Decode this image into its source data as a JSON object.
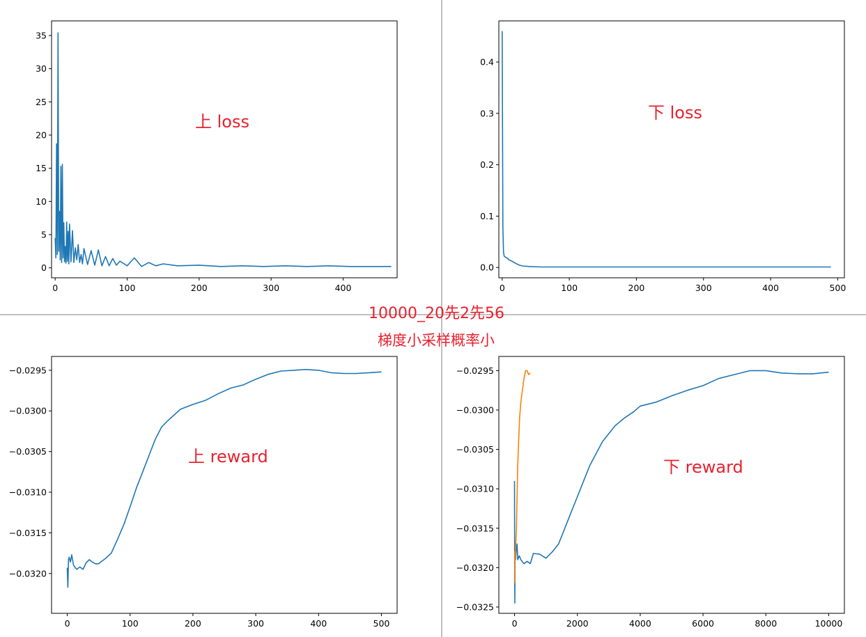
{
  "captions": {
    "line1": "10000_20先2先56",
    "line2": "梯度小采样概率小"
  },
  "colors": {
    "series_blue": "#1f77b4",
    "series_orange": "#ff7f0e",
    "annotation_red": "#e8212d",
    "divider_gray": "#c0c0c0"
  },
  "chart_data": [
    {
      "type": "line",
      "annotation": "上 loss",
      "xlim": [
        -5,
        475
      ],
      "ylim": [
        -1.5,
        37.2
      ],
      "xticks": [
        0,
        100,
        200,
        300,
        400
      ],
      "yticks": [
        0,
        5,
        10,
        15,
        20,
        25,
        30,
        35
      ],
      "xticklabels": [
        "0",
        "100",
        "200",
        "300",
        "400"
      ],
      "yticklabels": [
        "0",
        "5",
        "10",
        "15",
        "20",
        "25",
        "30",
        "35"
      ],
      "series": [
        {
          "color": "#1f77b4",
          "x": [
            0,
            1,
            2,
            3,
            4,
            5,
            6,
            7,
            8,
            9,
            10,
            11,
            12,
            13,
            14,
            15,
            16,
            17,
            18,
            19,
            20,
            22,
            24,
            26,
            28,
            30,
            32,
            34,
            36,
            38,
            40,
            45,
            50,
            55,
            60,
            65,
            70,
            75,
            80,
            85,
            90,
            100,
            110,
            120,
            130,
            140,
            150,
            170,
            200,
            230,
            260,
            290,
            320,
            350,
            380,
            410,
            440,
            467
          ],
          "y": [
            4.5,
            1.5,
            18.7,
            2.0,
            35.4,
            2.5,
            8.5,
            1.2,
            15.3,
            0.8,
            15.6,
            1.5,
            6.8,
            0.9,
            3.2,
            0.7,
            6.9,
            1.0,
            5.5,
            0.6,
            6.6,
            0.9,
            5.6,
            0.8,
            3.0,
            1.2,
            3.5,
            0.8,
            2.0,
            0.6,
            2.9,
            0.5,
            2.6,
            0.4,
            2.7,
            0.3,
            1.7,
            0.3,
            1.4,
            0.4,
            1.0,
            0.3,
            1.5,
            0.2,
            0.8,
            0.3,
            0.6,
            0.3,
            0.4,
            0.2,
            0.3,
            0.2,
            0.3,
            0.2,
            0.3,
            0.2,
            0.2,
            0.2
          ]
        }
      ]
    },
    {
      "type": "line",
      "annotation": "下 loss",
      "xlim": [
        -5,
        510
      ],
      "ylim": [
        -0.02,
        0.48
      ],
      "xticks": [
        0,
        100,
        200,
        300,
        400,
        500
      ],
      "yticks": [
        0.0,
        0.1,
        0.2,
        0.3,
        0.4
      ],
      "xticklabels": [
        "0",
        "100",
        "200",
        "300",
        "400",
        "500"
      ],
      "yticklabels": [
        "0.0",
        "0.1",
        "0.2",
        "0.3",
        "0.4"
      ],
      "series": [
        {
          "color": "#1f77b4",
          "x": [
            0,
            1,
            2,
            3,
            5,
            8,
            10,
            15,
            20,
            25,
            30,
            40,
            60,
            100,
            150,
            200,
            250,
            300,
            400,
            490
          ],
          "y": [
            0.46,
            0.08,
            0.03,
            0.022,
            0.02,
            0.018,
            0.015,
            0.012,
            0.008,
            0.005,
            0.003,
            0.002,
            0.001,
            0.001,
            0.001,
            0.001,
            0.001,
            0.001,
            0.001,
            0.001
          ]
        }
      ]
    },
    {
      "type": "line",
      "annotation": "上 reward",
      "xlim": [
        -25,
        525
      ],
      "ylim": [
        -0.03249,
        -0.02933
      ],
      "xticks": [
        0,
        100,
        200,
        300,
        400,
        500
      ],
      "yticks": [
        -0.032,
        -0.0315,
        -0.031,
        -0.0305,
        -0.03,
        -0.0295
      ],
      "xticklabels": [
        "0",
        "100",
        "200",
        "300",
        "400",
        "500"
      ],
      "yticklabels": [
        "−0.0320",
        "−0.0315",
        "−0.0310",
        "−0.0305",
        "−0.0300",
        "−0.0295"
      ],
      "series": [
        {
          "color": "#1f77b4",
          "x": [
            0,
            1,
            2,
            3,
            5,
            7,
            10,
            15,
            20,
            25,
            30,
            35,
            40,
            45,
            50,
            55,
            60,
            70,
            80,
            90,
            100,
            110,
            120,
            130,
            140,
            150,
            160,
            170,
            180,
            190,
            200,
            220,
            240,
            260,
            280,
            300,
            320,
            340,
            360,
            380,
            400,
            420,
            440,
            460,
            480,
            500
          ],
          "y": [
            -0.03193,
            -0.03217,
            -0.03183,
            -0.0318,
            -0.03186,
            -0.03177,
            -0.0319,
            -0.03195,
            -0.03192,
            -0.03195,
            -0.03187,
            -0.03183,
            -0.03186,
            -0.03188,
            -0.03188,
            -0.03185,
            -0.03182,
            -0.03175,
            -0.03158,
            -0.0314,
            -0.03118,
            -0.03095,
            -0.03075,
            -0.03055,
            -0.03035,
            -0.0302,
            -0.03012,
            -0.03005,
            -0.02998,
            -0.02995,
            -0.02992,
            -0.02987,
            -0.02979,
            -0.02972,
            -0.02968,
            -0.02961,
            -0.02955,
            -0.02951,
            -0.0295,
            -0.02949,
            -0.0295,
            -0.02953,
            -0.02954,
            -0.02954,
            -0.02953,
            -0.02952
          ]
        }
      ]
    },
    {
      "type": "line",
      "annotation": "下 reward",
      "xlim": [
        -500,
        10500
      ],
      "ylim": [
        -0.03258,
        -0.02932
      ],
      "xticks": [
        0,
        2000,
        4000,
        6000,
        8000,
        10000
      ],
      "yticks": [
        -0.0325,
        -0.032,
        -0.0315,
        -0.031,
        -0.0305,
        -0.03,
        -0.0295
      ],
      "xticklabels": [
        "0",
        "2000",
        "4000",
        "6000",
        "8000",
        "10000"
      ],
      "yticklabels": [
        "−0.0325",
        "−0.0320",
        "−0.0315",
        "−0.0310",
        "−0.0305",
        "−0.0300",
        "−0.0295"
      ],
      "series": [
        {
          "color": "#1f77b4",
          "x": [
            0,
            5,
            10,
            15,
            20,
            30,
            50,
            80,
            100,
            150,
            200,
            300,
            400,
            500,
            600,
            800,
            1000,
            1200,
            1400,
            1600,
            1800,
            2000,
            2200,
            2400,
            2600,
            2800,
            3000,
            3200,
            3500,
            3800,
            4000,
            4500,
            5000,
            5500,
            6000,
            6500,
            7000,
            7500,
            8000,
            8500,
            9000,
            9500,
            10000
          ],
          "y": [
            -0.0309,
            -0.0322,
            -0.03245,
            -0.0318,
            -0.0317,
            -0.0319,
            -0.0318,
            -0.0317,
            -0.0319,
            -0.03185,
            -0.0319,
            -0.03195,
            -0.03192,
            -0.03195,
            -0.03182,
            -0.03183,
            -0.03188,
            -0.0318,
            -0.0317,
            -0.0315,
            -0.0313,
            -0.0311,
            -0.0309,
            -0.0307,
            -0.03055,
            -0.0304,
            -0.0303,
            -0.0302,
            -0.0301,
            -0.03002,
            -0.02995,
            -0.0299,
            -0.02982,
            -0.02975,
            -0.02969,
            -0.0296,
            -0.02955,
            -0.0295,
            -0.0295,
            -0.02953,
            -0.02954,
            -0.02954,
            -0.02952
          ]
        },
        {
          "color": "#ff7f0e",
          "x": [
            0,
            10,
            20,
            30,
            40,
            60,
            80,
            100,
            130,
            160,
            200,
            250,
            300,
            350,
            400,
            450,
            500
          ],
          "y": [
            -0.0322,
            -0.0318,
            -0.0319,
            -0.0318,
            -0.0317,
            -0.0315,
            -0.0311,
            -0.0307,
            -0.0304,
            -0.0301,
            -0.0299,
            -0.02975,
            -0.0296,
            -0.0295,
            -0.0295,
            -0.02955,
            -0.02953
          ]
        }
      ]
    }
  ]
}
